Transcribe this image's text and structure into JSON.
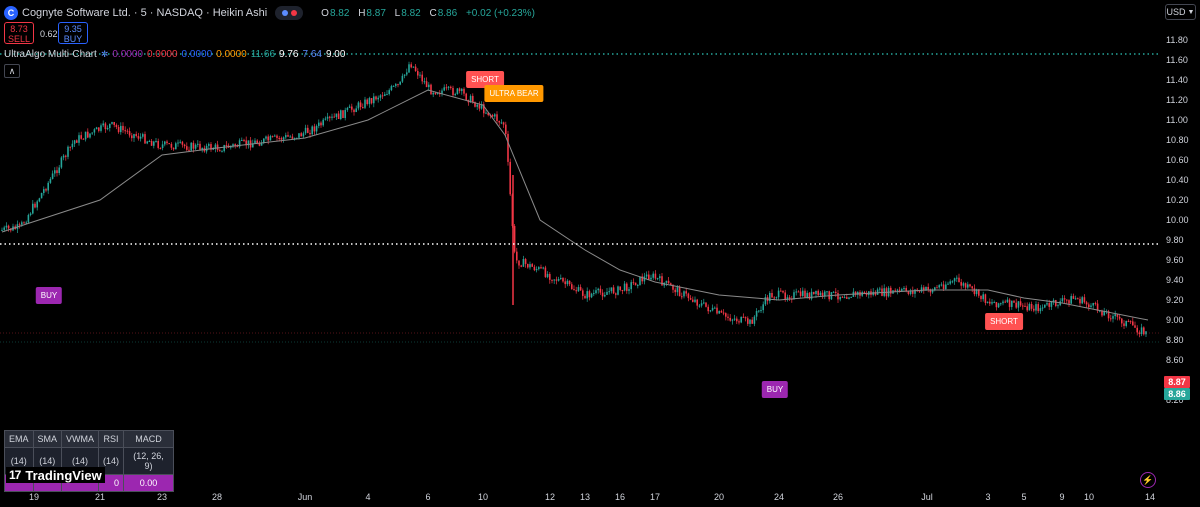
{
  "header": {
    "symbol_title": "Cognyte Software Ltd. · 5 · NASDAQ · Heikin Ashi",
    "logo_letter": "C",
    "ohlc": [
      {
        "label": "O",
        "value": "8.82"
      },
      {
        "label": "H",
        "value": "8.87"
      },
      {
        "label": "L",
        "value": "8.82"
      },
      {
        "label": "C",
        "value": "8.86"
      },
      {
        "label": "",
        "value": "+0.02 (+0.23%)"
      }
    ]
  },
  "trade": {
    "sell_price": "8.73",
    "sell_label": "SELL",
    "spread": "0.62",
    "buy_price": "9.35",
    "buy_label": "BUY"
  },
  "indicator": {
    "name": "UltraAlgo Multi-Chart",
    "values": [
      {
        "text": "0.0000",
        "color": "#9c27b0"
      },
      {
        "text": "0.0000",
        "color": "#f23645"
      },
      {
        "text": "0.0000",
        "color": "#2962ff"
      },
      {
        "text": "0.0000",
        "color": "#ff9800"
      },
      {
        "text": "11.66",
        "color": "#26a69a"
      },
      {
        "text": "9.76",
        "color": "#ffffff"
      },
      {
        "text": "7.64",
        "color": "#5b8cff"
      },
      {
        "text": "9.00",
        "color": "#ffffff"
      }
    ]
  },
  "currency": "USD",
  "y_axis": [
    "11.80",
    "11.60",
    "11.40",
    "11.20",
    "11.00",
    "10.80",
    "10.60",
    "10.40",
    "10.20",
    "10.00",
    "9.80",
    "9.60",
    "9.40",
    "9.20",
    "9.00",
    "8.80",
    "8.60",
    "8.40",
    "8.20"
  ],
  "x_axis": [
    "19",
    "21",
    "23",
    "28",
    "Jun",
    "4",
    "6",
    "10",
    "12",
    "13",
    "16",
    "17",
    "20",
    "24",
    "26",
    "Jul",
    "3",
    "5",
    "9",
    "10",
    "14"
  ],
  "price_labels": {
    "upper": "8.87",
    "lower": "8.86"
  },
  "signals": [
    {
      "kind": "short",
      "label": "SHORT"
    },
    {
      "kind": "ultra",
      "label": "ULTRA BEAR"
    },
    {
      "kind": "buy",
      "label": "BUY"
    },
    {
      "kind": "buy",
      "label": "BUY"
    },
    {
      "kind": "short",
      "label": "SHORT"
    }
  ],
  "table": {
    "headers": [
      "EMA",
      "SMA",
      "VWMA",
      "RSI",
      "MACD"
    ],
    "params": [
      "(14)",
      "(14)",
      "(14)",
      "(14)",
      "(12, 26, 9)"
    ],
    "values": [
      "",
      "",
      "",
      "0",
      "0.00"
    ]
  },
  "branding": {
    "mark": "17",
    "name": "TradingView"
  },
  "colors": {
    "up": "#26a69a",
    "down": "#f23645",
    "ma": "#8a8a8a",
    "buy": "#9c27b0",
    "short": "#ff5252",
    "ultra": "#ff9800"
  },
  "chart_data": {
    "type": "line",
    "title": "",
    "chart_style": "candlestick (Heikin Ashi)",
    "ylim": [
      8.1,
      11.85
    ],
    "x_ticks": [
      "19",
      "21",
      "23",
      "28",
      "Jun",
      "4",
      "6",
      "10",
      "12",
      "13",
      "16",
      "17",
      "20",
      "24",
      "26",
      "Jul",
      "3",
      "5",
      "9",
      "10",
      "14"
    ],
    "price_path": [
      {
        "x": "19",
        "y": 9.9
      },
      {
        "x": "20",
        "y": 9.92
      },
      {
        "x": "21",
        "y": 10.8
      },
      {
        "x": "22",
        "y": 10.95
      },
      {
        "x": "23",
        "y": 10.75
      },
      {
        "x": "28",
        "y": 10.72
      },
      {
        "x": "Jun",
        "y": 10.85
      },
      {
        "x": "3",
        "y": 11.15
      },
      {
        "x": "4",
        "y": 11.35
      },
      {
        "x": "5",
        "y": 11.58
      },
      {
        "x": "6",
        "y": 11.3
      },
      {
        "x": "7",
        "y": 11.28
      },
      {
        "x": "10",
        "y": 10.95
      },
      {
        "x": "11",
        "y": 9.6
      },
      {
        "x": "12",
        "y": 9.5
      },
      {
        "x": "13",
        "y": 9.25
      },
      {
        "x": "16",
        "y": 9.3
      },
      {
        "x": "17",
        "y": 9.45
      },
      {
        "x": "20",
        "y": 9.05
      },
      {
        "x": "21",
        "y": 8.97
      },
      {
        "x": "24",
        "y": 9.25
      },
      {
        "x": "26",
        "y": 9.25
      },
      {
        "x": "Jul",
        "y": 9.3
      },
      {
        "x": "2",
        "y": 9.4
      },
      {
        "x": "3",
        "y": 9.18
      },
      {
        "x": "5",
        "y": 9.12
      },
      {
        "x": "9",
        "y": 9.22
      },
      {
        "x": "10",
        "y": 9.1
      },
      {
        "x": "14",
        "y": 8.86
      }
    ],
    "moving_average": [
      {
        "x": "19",
        "y": 9.88
      },
      {
        "x": "21",
        "y": 10.2
      },
      {
        "x": "23",
        "y": 10.65
      },
      {
        "x": "28",
        "y": 10.72
      },
      {
        "x": "Jun",
        "y": 10.82
      },
      {
        "x": "4",
        "y": 11.0
      },
      {
        "x": "6",
        "y": 11.3
      },
      {
        "x": "10",
        "y": 11.15
      },
      {
        "x": "11",
        "y": 10.85
      },
      {
        "x": "12",
        "y": 10.0
      },
      {
        "x": "13",
        "y": 9.7
      },
      {
        "x": "16",
        "y": 9.5
      },
      {
        "x": "17",
        "y": 9.38
      },
      {
        "x": "20",
        "y": 9.25
      },
      {
        "x": "24",
        "y": 9.2
      },
      {
        "x": "26",
        "y": 9.25
      },
      {
        "x": "Jul",
        "y": 9.3
      },
      {
        "x": "3",
        "y": 9.3
      },
      {
        "x": "5",
        "y": 9.22
      },
      {
        "x": "9",
        "y": 9.17
      },
      {
        "x": "14",
        "y": 9.0
      }
    ],
    "horizontal_levels": [
      {
        "y": 11.66,
        "style": "dotted",
        "color": "#26a69a"
      },
      {
        "y": 9.76,
        "style": "dotted",
        "color": "#ffffff"
      }
    ],
    "annotations": [
      "SHORT",
      "ULTRA BEAR",
      "BUY",
      "BUY",
      "SHORT"
    ]
  }
}
